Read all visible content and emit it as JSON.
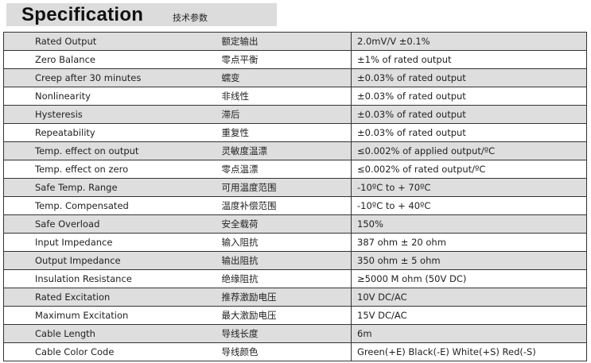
{
  "header": {
    "title": "Specification",
    "subtitle": "技术参数"
  },
  "rows": [
    {
      "en": "Rated Output",
      "zh": "额定输出",
      "value": "2.0mV/V ±0.1%"
    },
    {
      "en": "Zero Balance",
      "zh": "零点平衡",
      "value": "±1% of rated output"
    },
    {
      "en": "Creep after 30 minutes",
      "zh": "蠕变",
      "value": "±0.03% of rated output"
    },
    {
      "en": "Nonlinearity",
      "zh": "非线性",
      "value": "±0.03% of rated output"
    },
    {
      "en": "Hysteresis",
      "zh": "滞后",
      "value": "±0.03% of rated output"
    },
    {
      "en": "Repeatability",
      "zh": "重复性",
      "value": "±0.03% of rated output"
    },
    {
      "en": "Temp. effect on output",
      "zh": "灵敏度温漂",
      "value": "≤0.002% of applied output/ºC"
    },
    {
      "en": "Temp. effect on zero",
      "zh": "零点温漂",
      "value": "≤0.002% of rated output/ºC"
    },
    {
      "en": "Safe Temp. Range",
      "zh": "可用温度范围",
      "value": "-10ºC to + 70ºC"
    },
    {
      "en": "Temp. Compensated",
      "zh": "温度补偿范围",
      "value": "-10ºC to + 40ºC"
    },
    {
      "en": "Safe Overload",
      "zh": "安全载荷",
      "value": "150%"
    },
    {
      "en": "Input Impedance",
      "zh": "输入阻抗",
      "value": "387 ohm ± 20 ohm"
    },
    {
      "en": "Output Impedance",
      "zh": "输出阻抗",
      "value": "350 ohm ± 5 ohm"
    },
    {
      "en": "Insulation Resistance",
      "zh": "绝缘阻抗",
      "value": "≥5000 M ohm (50V DC)"
    },
    {
      "en": "Rated Excitation",
      "zh": "推荐激励电压",
      "value": "10V DC/AC"
    },
    {
      "en": "Maximum Excitation",
      "zh": "最大激励电压",
      "value": "15V DC/AC"
    },
    {
      "en": "Cable Length",
      "zh": "导线长度",
      "value": "6m"
    },
    {
      "en": "Cable Color Code",
      "zh": "导线颜色",
      "value": "Green(+E) Black(-E) White(+S) Red(-S)"
    }
  ]
}
